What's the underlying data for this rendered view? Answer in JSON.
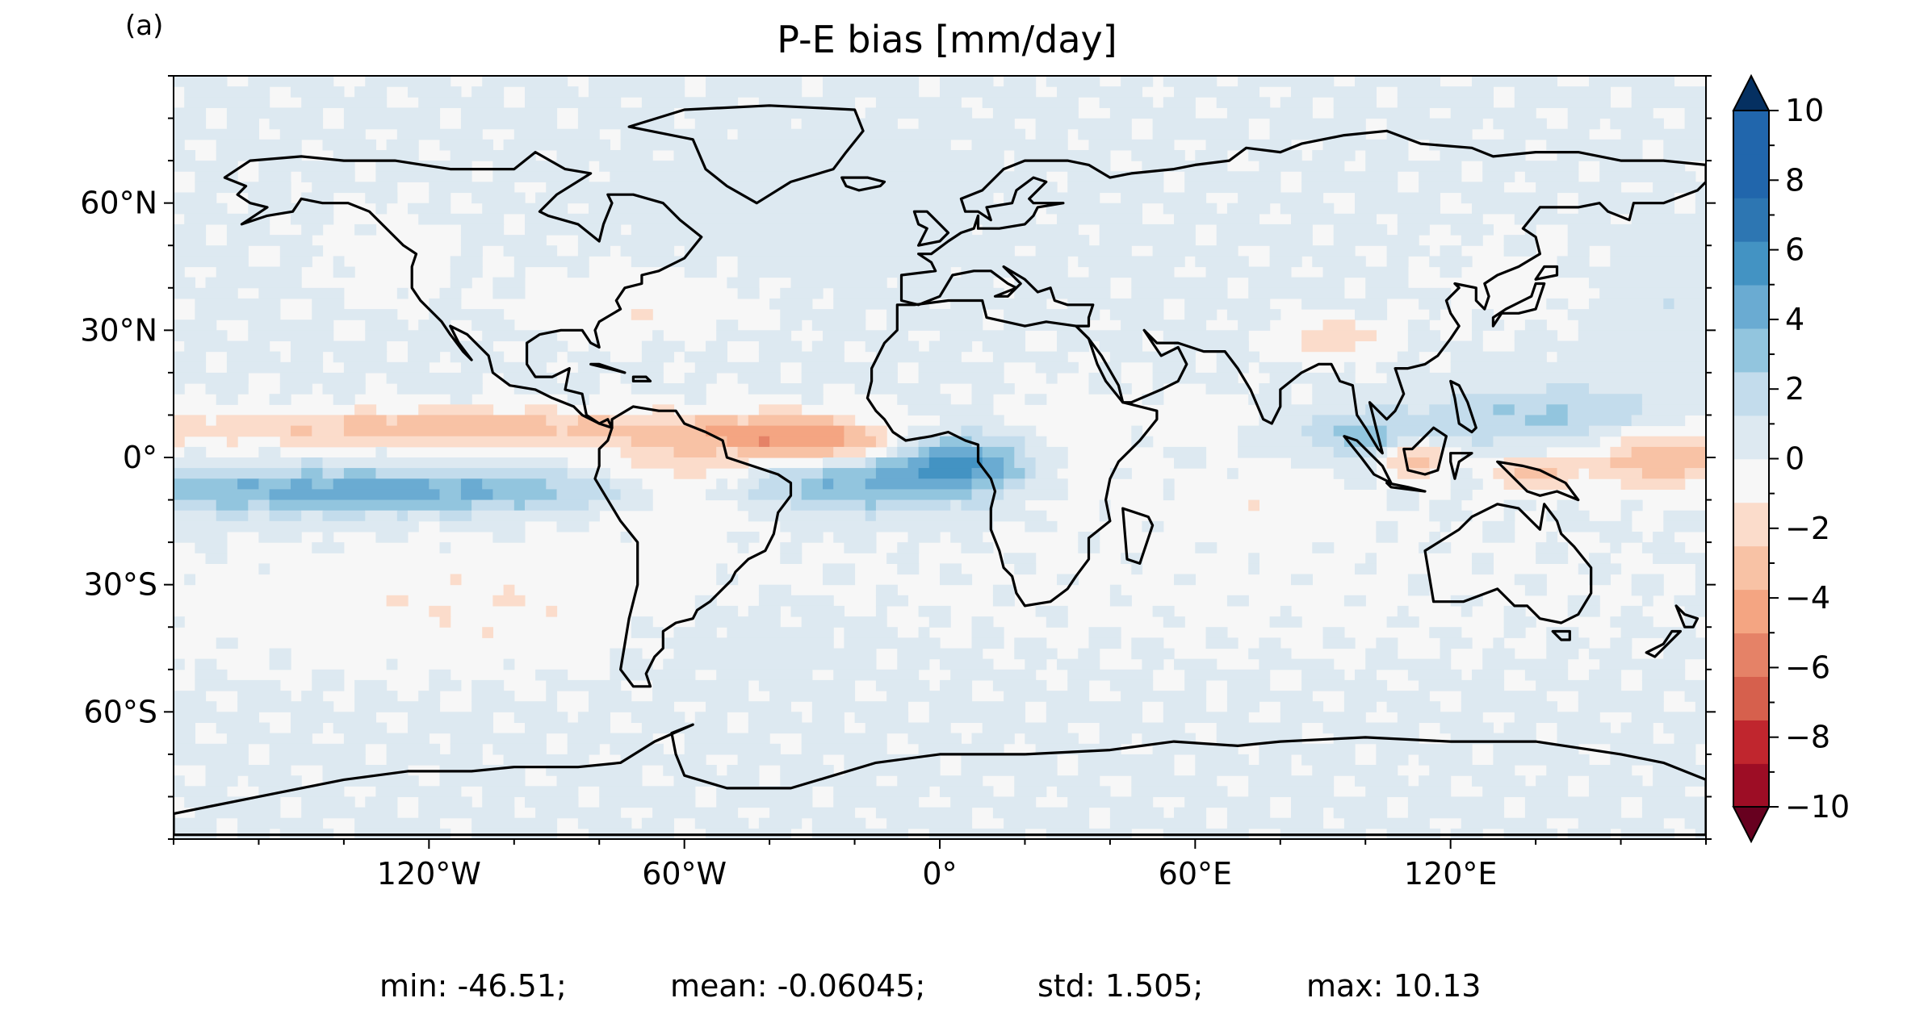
{
  "panel_label": "(a)",
  "chart_data": {
    "type": "heatmap",
    "title": "P-E bias [mm/day]",
    "projection": "plate-carree global map with coastlines",
    "x_ticks": [
      "120°W",
      "60°W",
      "0°",
      "60°E",
      "120°E"
    ],
    "x_tick_values": [
      -120,
      -60,
      0,
      60,
      120
    ],
    "y_ticks": [
      "60°N",
      "30°N",
      "0°",
      "30°S",
      "60°S"
    ],
    "y_tick_values": [
      60,
      30,
      0,
      -30,
      -60
    ],
    "xlim": [
      -180,
      180
    ],
    "ylim": [
      -90,
      90
    ],
    "colormap": "RdBu (red negative, blue positive)",
    "colorbar": {
      "min": -10,
      "max": 10,
      "step": 1.25,
      "extend": "both",
      "tick_values": [
        10,
        8,
        6,
        4,
        2,
        0,
        -2,
        -4,
        -6,
        -8,
        -10
      ],
      "tick_labels": [
        "10",
        "8",
        "6",
        "4",
        "2",
        "0",
        "−2",
        "−4",
        "−6",
        "−8",
        "−10"
      ],
      "colors": [
        "#67001f",
        "#9d0d25",
        "#c0262e",
        "#d6604d",
        "#e58267",
        "#f4a582",
        "#f8c2a5",
        "#fbdccb",
        "#f7f7f7",
        "#dde9f1",
        "#c3dcec",
        "#92c5de",
        "#6aabd2",
        "#4393c3",
        "#2d76b2",
        "#2166ac",
        "#053061"
      ]
    },
    "stats": {
      "min": "min: -46.51;",
      "mean": "mean: -0.06045;",
      "std": "std: 1.505;",
      "max": "max: 10.13"
    }
  }
}
